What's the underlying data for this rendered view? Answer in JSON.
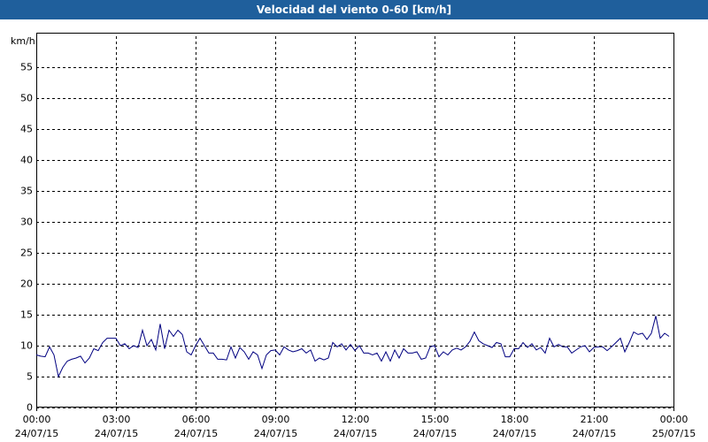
{
  "chart_data": {
    "type": "line",
    "title": "Velocidad del viento 0-60 [km/h]",
    "ylabel": "km/h",
    "x": [
      0,
      10,
      20,
      30,
      40,
      50,
      60,
      70,
      80,
      90,
      100,
      110,
      120,
      130,
      140,
      150,
      160,
      170,
      180,
      190,
      200,
      210,
      220,
      230,
      240,
      250,
      260,
      270,
      280,
      290,
      300,
      310,
      320,
      330,
      340,
      350,
      360,
      370,
      380,
      390,
      400,
      410,
      420,
      430,
      440,
      450,
      460,
      470,
      480,
      490,
      500,
      510,
      520,
      530,
      540,
      550,
      560,
      570,
      580,
      590,
      600,
      610,
      620,
      630,
      640,
      650,
      660,
      670,
      680,
      690,
      700,
      710,
      720,
      730,
      740,
      750,
      760,
      770,
      780,
      790,
      800,
      810,
      820,
      830,
      840,
      850,
      860,
      870,
      880,
      890,
      900,
      910,
      920,
      930,
      940,
      950,
      960,
      970,
      980,
      990,
      1000,
      1010,
      1020,
      1030,
      1040,
      1050,
      1060,
      1070,
      1080,
      1090,
      1100,
      1110,
      1120,
      1130,
      1140,
      1150,
      1160,
      1170,
      1180,
      1190,
      1200,
      1210,
      1220,
      1230,
      1240,
      1250,
      1260,
      1270,
      1280,
      1290,
      1300,
      1310,
      1320,
      1330,
      1340,
      1350,
      1360,
      1370,
      1380,
      1390,
      1400,
      1410,
      1420,
      1430
    ],
    "series": [
      {
        "color": "#000080",
        "values": [
          8.5,
          8.3,
          8.2,
          9.8,
          8.5,
          5,
          6.5,
          7.5,
          7.8,
          8,
          8.3,
          7.2,
          8,
          9.5,
          9.2,
          10.5,
          11.2,
          11.2,
          11.2,
          10,
          10.3,
          9.5,
          10,
          9.7,
          12.5,
          10,
          11,
          9.3,
          13.5,
          9.5,
          12.5,
          11.5,
          12.5,
          11.8,
          9,
          8.5,
          10,
          11.2,
          10,
          8.8,
          8.8,
          7.8,
          7.8,
          7.7,
          9.8,
          8,
          9.7,
          9,
          7.8,
          9,
          8.5,
          6.3,
          8.5,
          9.2,
          9.3,
          8.5,
          9.8,
          9.3,
          9,
          9.2,
          9.5,
          8.8,
          9.3,
          7.5,
          8,
          7.7,
          8,
          10.5,
          9.8,
          10.3,
          9.3,
          10.2,
          9.2,
          10,
          8.8,
          8.8,
          8.5,
          8.8,
          7.5,
          9,
          7.5,
          9.3,
          8,
          9.5,
          8.8,
          8.8,
          9,
          7.8,
          8,
          9.8,
          10,
          8.2,
          9,
          8.5,
          9.3,
          9.6,
          9.3,
          9.8,
          10.7,
          12.2,
          10.8,
          10.3,
          10,
          9.7,
          10.5,
          10.3,
          8.2,
          8.2,
          9.5,
          9.5,
          10.5,
          9.7,
          10.3,
          9.3,
          9.7,
          8.8,
          11.2,
          9.8,
          10.2,
          9.8,
          9.8,
          8.8,
          9.3,
          9.8,
          10,
          9,
          9.7,
          9.8,
          9.8,
          9.2,
          9.8,
          10.5,
          11.2,
          9,
          10.5,
          12.2,
          11.8,
          12,
          11,
          12,
          14.8,
          11.2,
          12,
          11.5
        ]
      }
    ],
    "xlim": [
      0,
      1440
    ],
    "xticks": [
      {
        "value": 0,
        "label": "00:00\n24/07/15"
      },
      {
        "value": 180,
        "label": "03:00\n24/07/15"
      },
      {
        "value": 360,
        "label": "06:00\n24/07/15"
      },
      {
        "value": 540,
        "label": "09:00\n24/07/15"
      },
      {
        "value": 720,
        "label": "12:00\n24/07/15"
      },
      {
        "value": 900,
        "label": "15:00\n24/07/15"
      },
      {
        "value": 1080,
        "label": "18:00\n24/07/15"
      },
      {
        "value": 1260,
        "label": "21:00\n24/07/15"
      },
      {
        "value": 1440,
        "label": "00:00\n25/07/15"
      }
    ],
    "ylim": [
      0,
      60
    ],
    "yticks": [
      0,
      5,
      10,
      15,
      20,
      25,
      30,
      35,
      40,
      45,
      50,
      55
    ],
    "grid": true
  }
}
